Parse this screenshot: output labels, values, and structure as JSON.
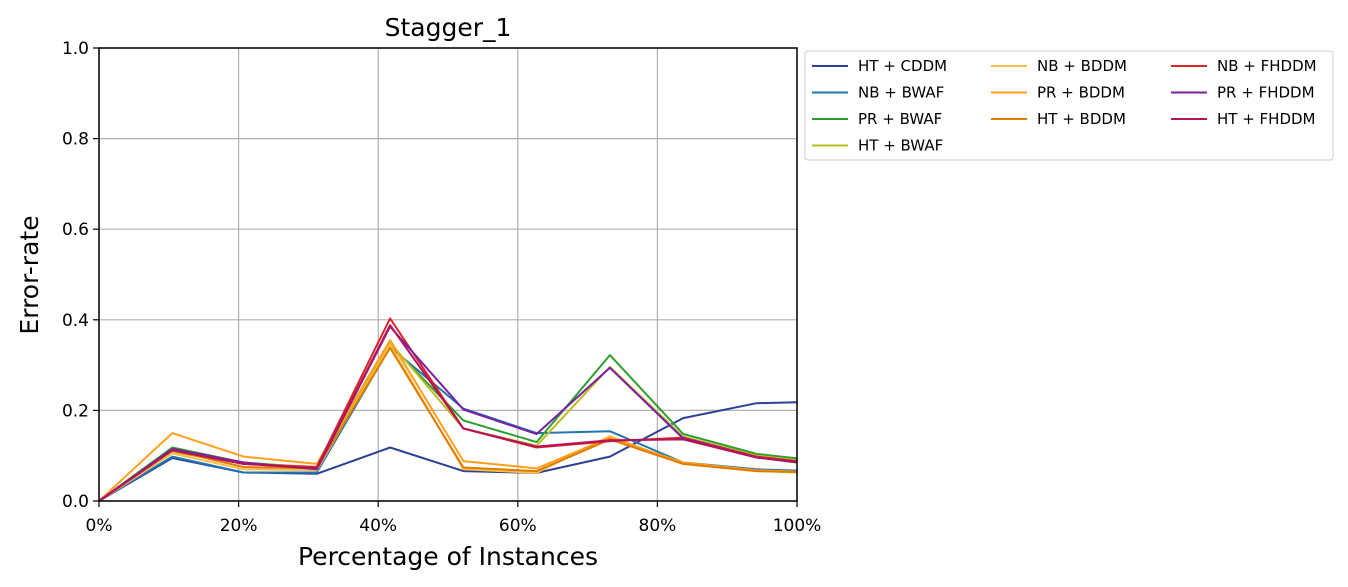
{
  "chart_data": {
    "type": "line",
    "title": "Stagger_1",
    "xlabel": "Percentage of Instances",
    "ylabel": "Error-rate",
    "xlim": [
      0,
      100
    ],
    "ylim": [
      0,
      1
    ],
    "x_tick_labels": [
      "0%",
      "20%",
      "40%",
      "60%",
      "80%",
      "100%"
    ],
    "y_tick_labels": [
      "0.0",
      "0.2",
      "0.4",
      "0.6",
      "0.8",
      "1.0"
    ],
    "grid": true,
    "legend_position": "outside top-right",
    "legend_columns": 3,
    "x": [
      0,
      10.5,
      20.7,
      31.2,
      41.7,
      52.2,
      62.7,
      73.2,
      83.7,
      94.2,
      100
    ],
    "series": [
      {
        "name": "HT + CDDM",
        "color": "#2e3f96",
        "values": [
          0,
          0.095,
          0.063,
          0.06,
          0.118,
          0.066,
          0.062,
          0.098,
          0.183,
          0.216,
          0.218
        ]
      },
      {
        "name": "NB + BWAF",
        "color": "#1f77b4",
        "values": [
          0,
          0.098,
          0.063,
          0.063,
          0.34,
          0.204,
          0.15,
          0.154,
          0.085,
          0.07,
          0.067
        ]
      },
      {
        "name": "PR + BWAF",
        "color": "#2ca02c",
        "values": [
          0,
          0.118,
          0.085,
          0.073,
          0.345,
          0.178,
          0.13,
          0.322,
          0.148,
          0.104,
          0.094
        ]
      },
      {
        "name": "HT + BWAF",
        "color": "#bcbd22",
        "values": [
          0,
          0.108,
          0.083,
          0.075,
          0.35,
          0.16,
          0.122,
          0.296,
          0.142,
          0.1,
          0.09
        ]
      },
      {
        "name": "NB + BDDM",
        "color": "#f5c04a",
        "values": [
          0,
          0.105,
          0.07,
          0.068,
          0.345,
          0.07,
          0.062,
          0.143,
          0.082,
          0.066,
          0.063
        ]
      },
      {
        "name": "PR + BDDM",
        "color": "#ff9f1c",
        "values": [
          0,
          0.15,
          0.098,
          0.082,
          0.355,
          0.088,
          0.072,
          0.14,
          0.085,
          0.068,
          0.065
        ]
      },
      {
        "name": "HT + BDDM",
        "color": "#e07b00",
        "values": [
          0,
          0.112,
          0.075,
          0.072,
          0.338,
          0.074,
          0.066,
          0.136,
          0.082,
          0.066,
          0.064
        ]
      },
      {
        "name": "NB + FHDDM",
        "color": "#d62728",
        "values": [
          0,
          0.112,
          0.082,
          0.075,
          0.403,
          0.16,
          0.118,
          0.132,
          0.14,
          0.098,
          0.088
        ]
      },
      {
        "name": "PR + FHDDM",
        "color": "#7b1fa2",
        "values": [
          0,
          0.115,
          0.085,
          0.07,
          0.385,
          0.202,
          0.148,
          0.294,
          0.138,
          0.096,
          0.086
        ]
      },
      {
        "name": "HT + FHDDM",
        "color": "#b5115c",
        "values": [
          0,
          0.112,
          0.082,
          0.072,
          0.388,
          0.16,
          0.12,
          0.134,
          0.136,
          0.096,
          0.085
        ]
      }
    ]
  }
}
